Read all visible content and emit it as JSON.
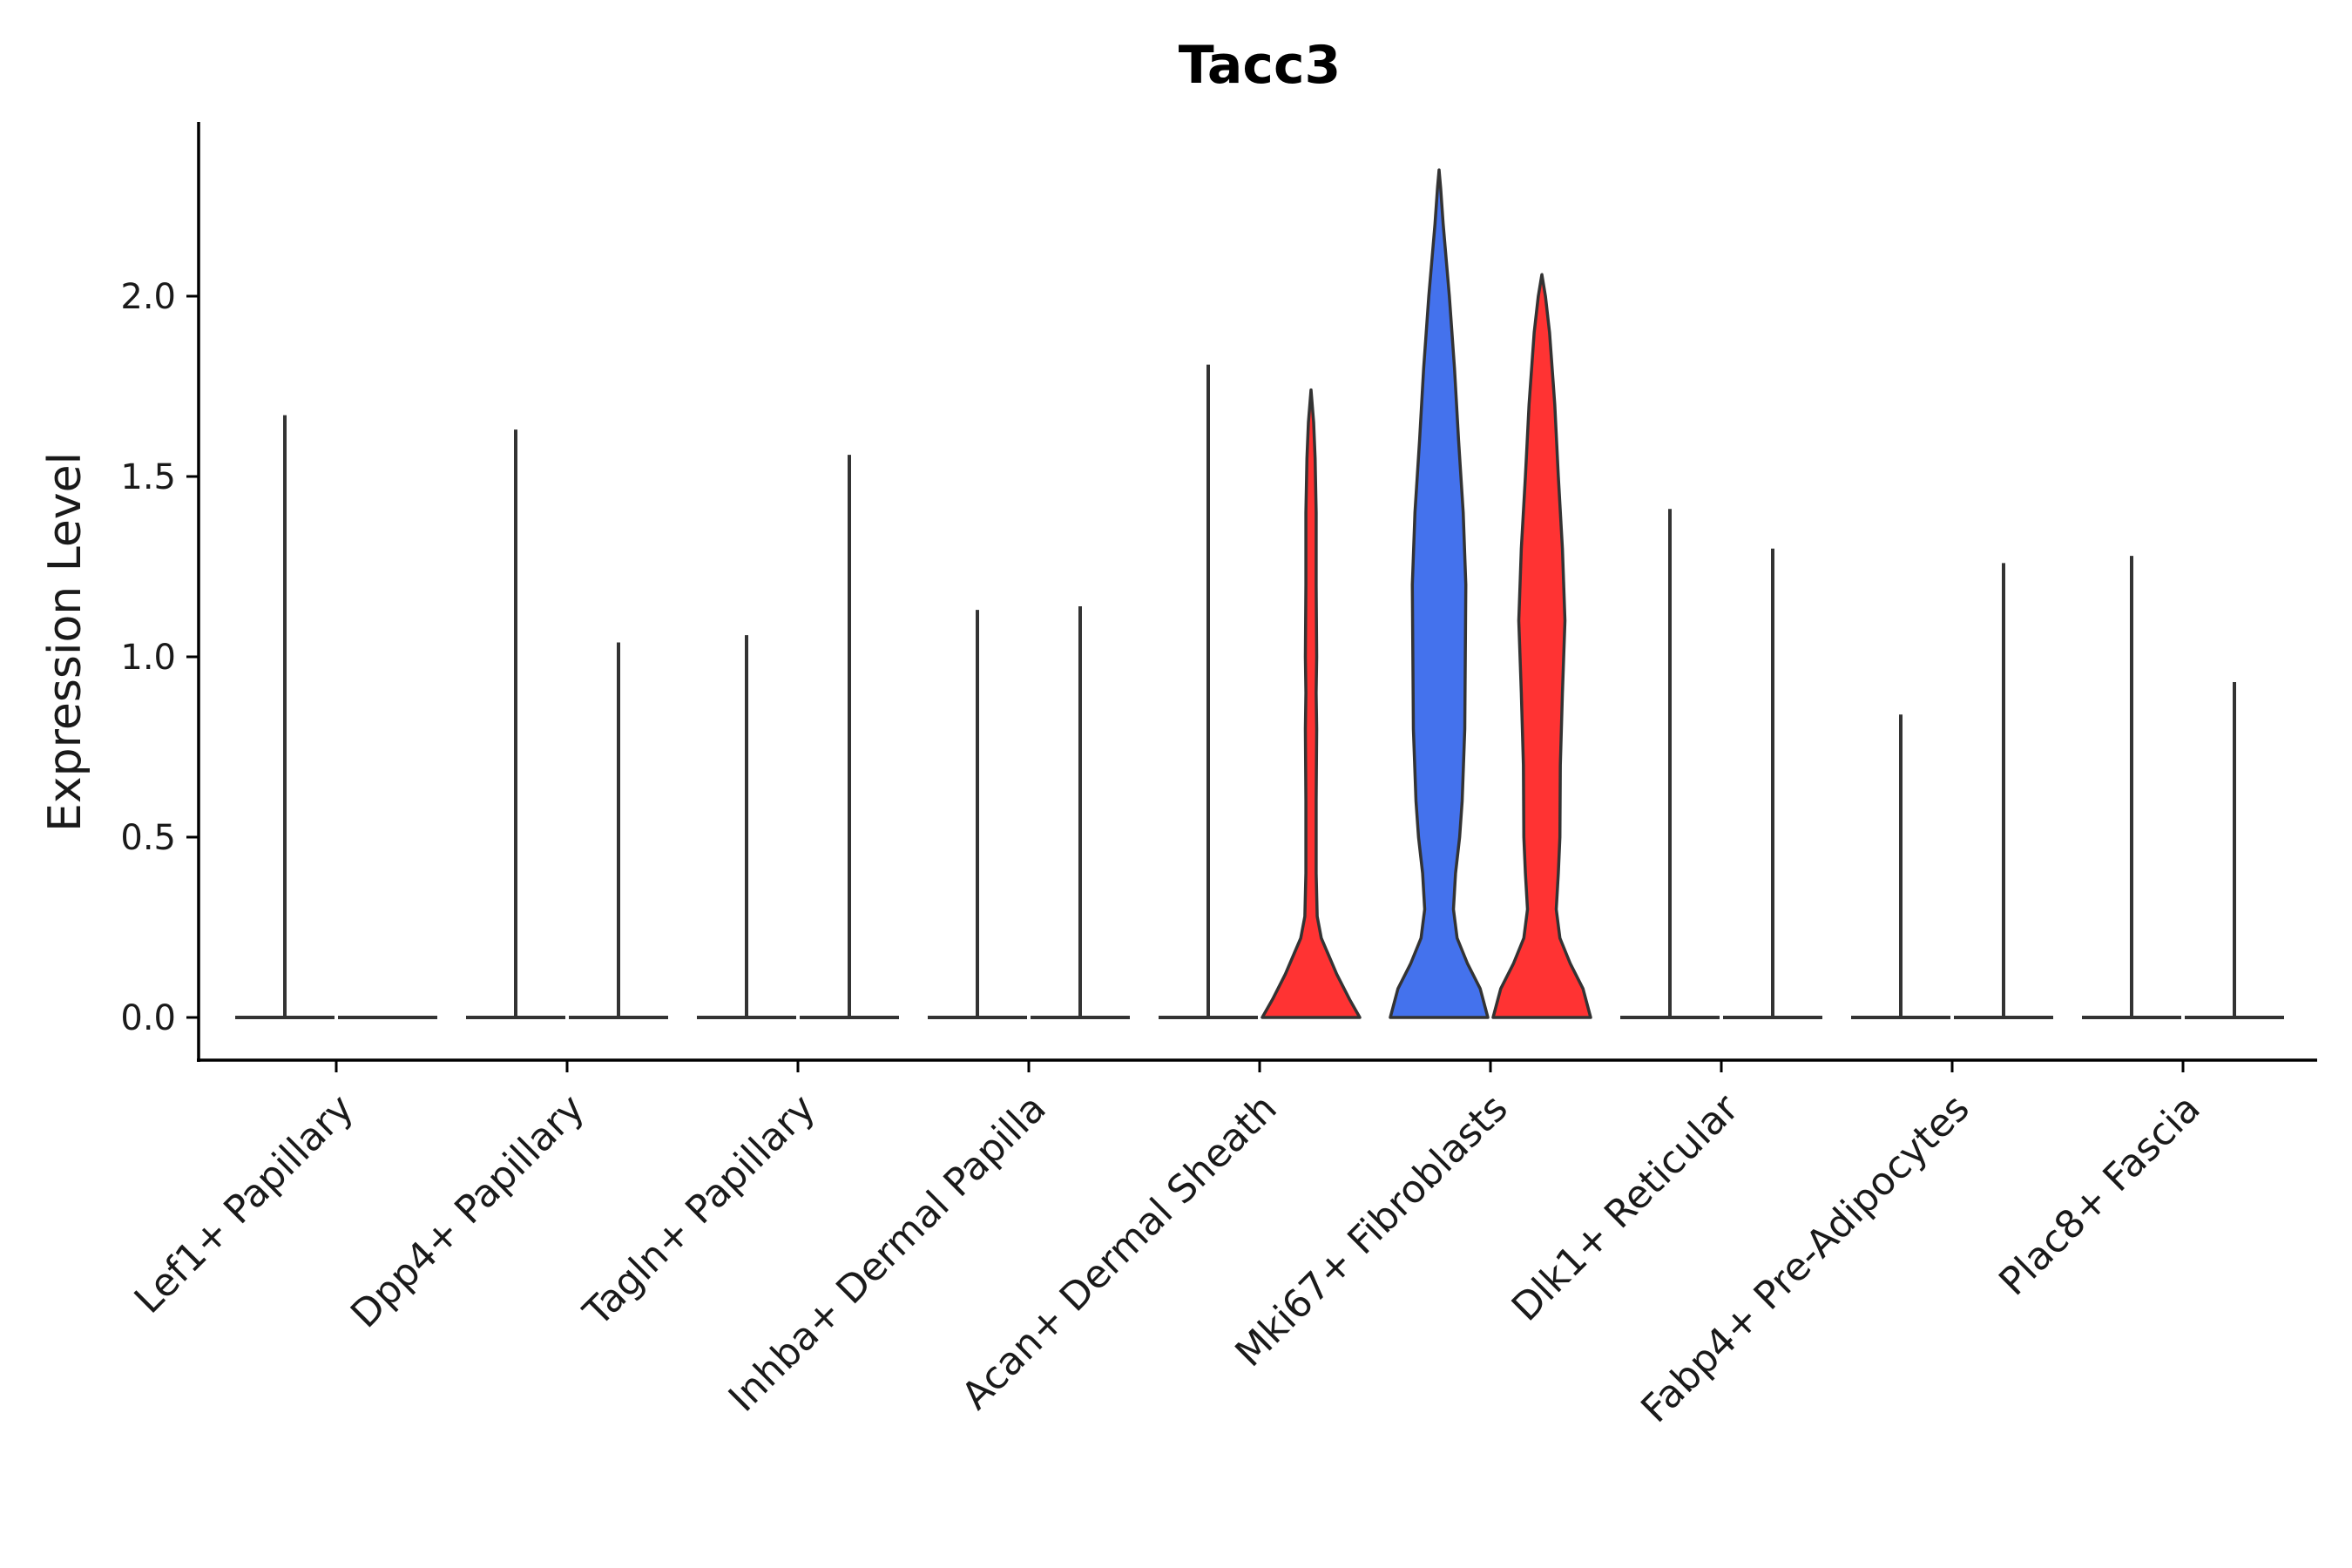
{
  "chart_data": {
    "type": "violin",
    "title": "Tacc3",
    "xlabel": "",
    "ylabel": "Expression Level",
    "ylim": [
      -0.12,
      2.5
    ],
    "yticks": [
      "0.0",
      "0.5",
      "1.0",
      "1.5",
      "2.0"
    ],
    "categories": [
      "Lef1+ Papillary",
      "Dpp4+ Papillary",
      "Tagln+ Papillary",
      "Inhba+ Dermal Papilla",
      "Acan+ Dermal Sheath",
      "Mki67+ Fibroblasts",
      "Dlk1+ Reticular",
      "Fabp4+ Pre-Adipocytes",
      "Plac8+ Fascia"
    ],
    "series_colors": {
      "group1": "#4472ED",
      "group2": "#FF3333"
    },
    "violins": [
      {
        "category": 0,
        "side": "left",
        "max": 1.67,
        "shape": "flat"
      },
      {
        "category": 0,
        "side": "right",
        "max": 0.0,
        "shape": "flat"
      },
      {
        "category": 1,
        "side": "left",
        "max": 1.63,
        "shape": "flat"
      },
      {
        "category": 1,
        "side": "right",
        "max": 1.04,
        "shape": "flat"
      },
      {
        "category": 2,
        "side": "left",
        "max": 1.06,
        "shape": "flat"
      },
      {
        "category": 2,
        "side": "right",
        "max": 1.56,
        "shape": "flat"
      },
      {
        "category": 3,
        "side": "left",
        "max": 1.13,
        "shape": "flat"
      },
      {
        "category": 3,
        "side": "right",
        "max": 1.14,
        "shape": "flat"
      },
      {
        "category": 4,
        "side": "left",
        "max": 1.81,
        "shape": "flat"
      },
      {
        "category": 4,
        "side": "right",
        "max": 1.74,
        "shape": "filled",
        "color": "group2",
        "profile": [
          [
            0.0,
            0.95
          ],
          [
            0.05,
            0.75
          ],
          [
            0.12,
            0.5
          ],
          [
            0.18,
            0.32
          ],
          [
            0.22,
            0.2
          ],
          [
            0.28,
            0.12
          ],
          [
            0.4,
            0.1
          ],
          [
            0.6,
            0.1
          ],
          [
            0.8,
            0.11
          ],
          [
            0.9,
            0.1
          ],
          [
            1.0,
            0.11
          ],
          [
            1.2,
            0.1
          ],
          [
            1.4,
            0.1
          ],
          [
            1.55,
            0.08
          ],
          [
            1.65,
            0.05
          ],
          [
            1.74,
            0.0
          ]
        ]
      },
      {
        "category": 5,
        "side": "left",
        "max": 2.35,
        "shape": "filled",
        "color": "group1",
        "profile": [
          [
            0.0,
            0.95
          ],
          [
            0.08,
            0.8
          ],
          [
            0.15,
            0.55
          ],
          [
            0.22,
            0.35
          ],
          [
            0.3,
            0.28
          ],
          [
            0.4,
            0.32
          ],
          [
            0.5,
            0.4
          ],
          [
            0.6,
            0.45
          ],
          [
            0.8,
            0.5
          ],
          [
            1.0,
            0.51
          ],
          [
            1.2,
            0.52
          ],
          [
            1.4,
            0.47
          ],
          [
            1.6,
            0.38
          ],
          [
            1.8,
            0.3
          ],
          [
            2.0,
            0.2
          ],
          [
            2.2,
            0.08
          ],
          [
            2.3,
            0.03
          ],
          [
            2.35,
            0.0
          ]
        ]
      },
      {
        "category": 5,
        "side": "right",
        "max": 2.06,
        "shape": "filled",
        "color": "group2",
        "profile": [
          [
            0.0,
            0.95
          ],
          [
            0.08,
            0.8
          ],
          [
            0.15,
            0.55
          ],
          [
            0.22,
            0.35
          ],
          [
            0.3,
            0.28
          ],
          [
            0.4,
            0.32
          ],
          [
            0.5,
            0.35
          ],
          [
            0.7,
            0.36
          ],
          [
            0.9,
            0.4
          ],
          [
            1.1,
            0.45
          ],
          [
            1.3,
            0.4
          ],
          [
            1.5,
            0.32
          ],
          [
            1.7,
            0.25
          ],
          [
            1.9,
            0.15
          ],
          [
            2.0,
            0.07
          ],
          [
            2.06,
            0.0
          ]
        ]
      },
      {
        "category": 6,
        "side": "left",
        "max": 1.41,
        "shape": "flat"
      },
      {
        "category": 6,
        "side": "right",
        "max": 1.3,
        "shape": "flat"
      },
      {
        "category": 7,
        "side": "left",
        "max": 0.84,
        "shape": "flat"
      },
      {
        "category": 7,
        "side": "right",
        "max": 1.26,
        "shape": "flat"
      },
      {
        "category": 8,
        "side": "left",
        "max": 1.28,
        "shape": "flat"
      },
      {
        "category": 8,
        "side": "right",
        "max": 0.93,
        "shape": "flat"
      }
    ]
  }
}
